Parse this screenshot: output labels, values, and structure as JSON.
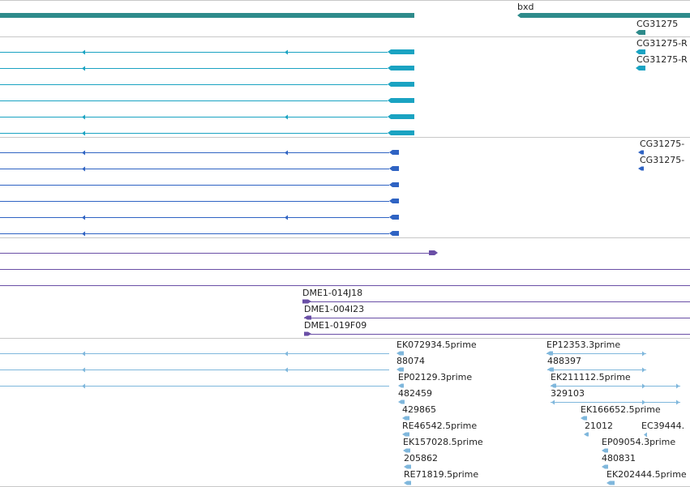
{
  "colors": {
    "gene": "#2e8b8b",
    "transcript": "#1aa3c2",
    "cds": "#2f63c3",
    "clone": "#6a4fa6",
    "est": "#7fb7dc",
    "separator": "#c8c8c8"
  },
  "tracks": {
    "genes": {
      "labels": [
        "bxd",
        "CG31275"
      ]
    },
    "transcripts": {
      "labels": [
        "CG31275-R",
        "CG31275-R"
      ]
    },
    "cds": {
      "labels": [
        "CG31275-",
        "CG31275-"
      ]
    },
    "clones": {
      "labels": [
        "DME1-014J18",
        "DME1-004I23",
        "DME1-019F09"
      ]
    },
    "ests": {
      "labels": [
        "EK072934.5prime",
        "88074",
        "EP02129.3prime",
        "482459",
        "429865",
        "RE46542.5prime",
        "EK157028.5prime",
        "205862",
        "RE71819.5prime",
        "EP12353.3prime",
        "488397",
        "EK211112.5prime",
        "329103",
        "EK166652.5prime",
        "21012",
        "EC39444.",
        "EP09054.3prime",
        "480831",
        "EK202444.5prime"
      ]
    }
  }
}
